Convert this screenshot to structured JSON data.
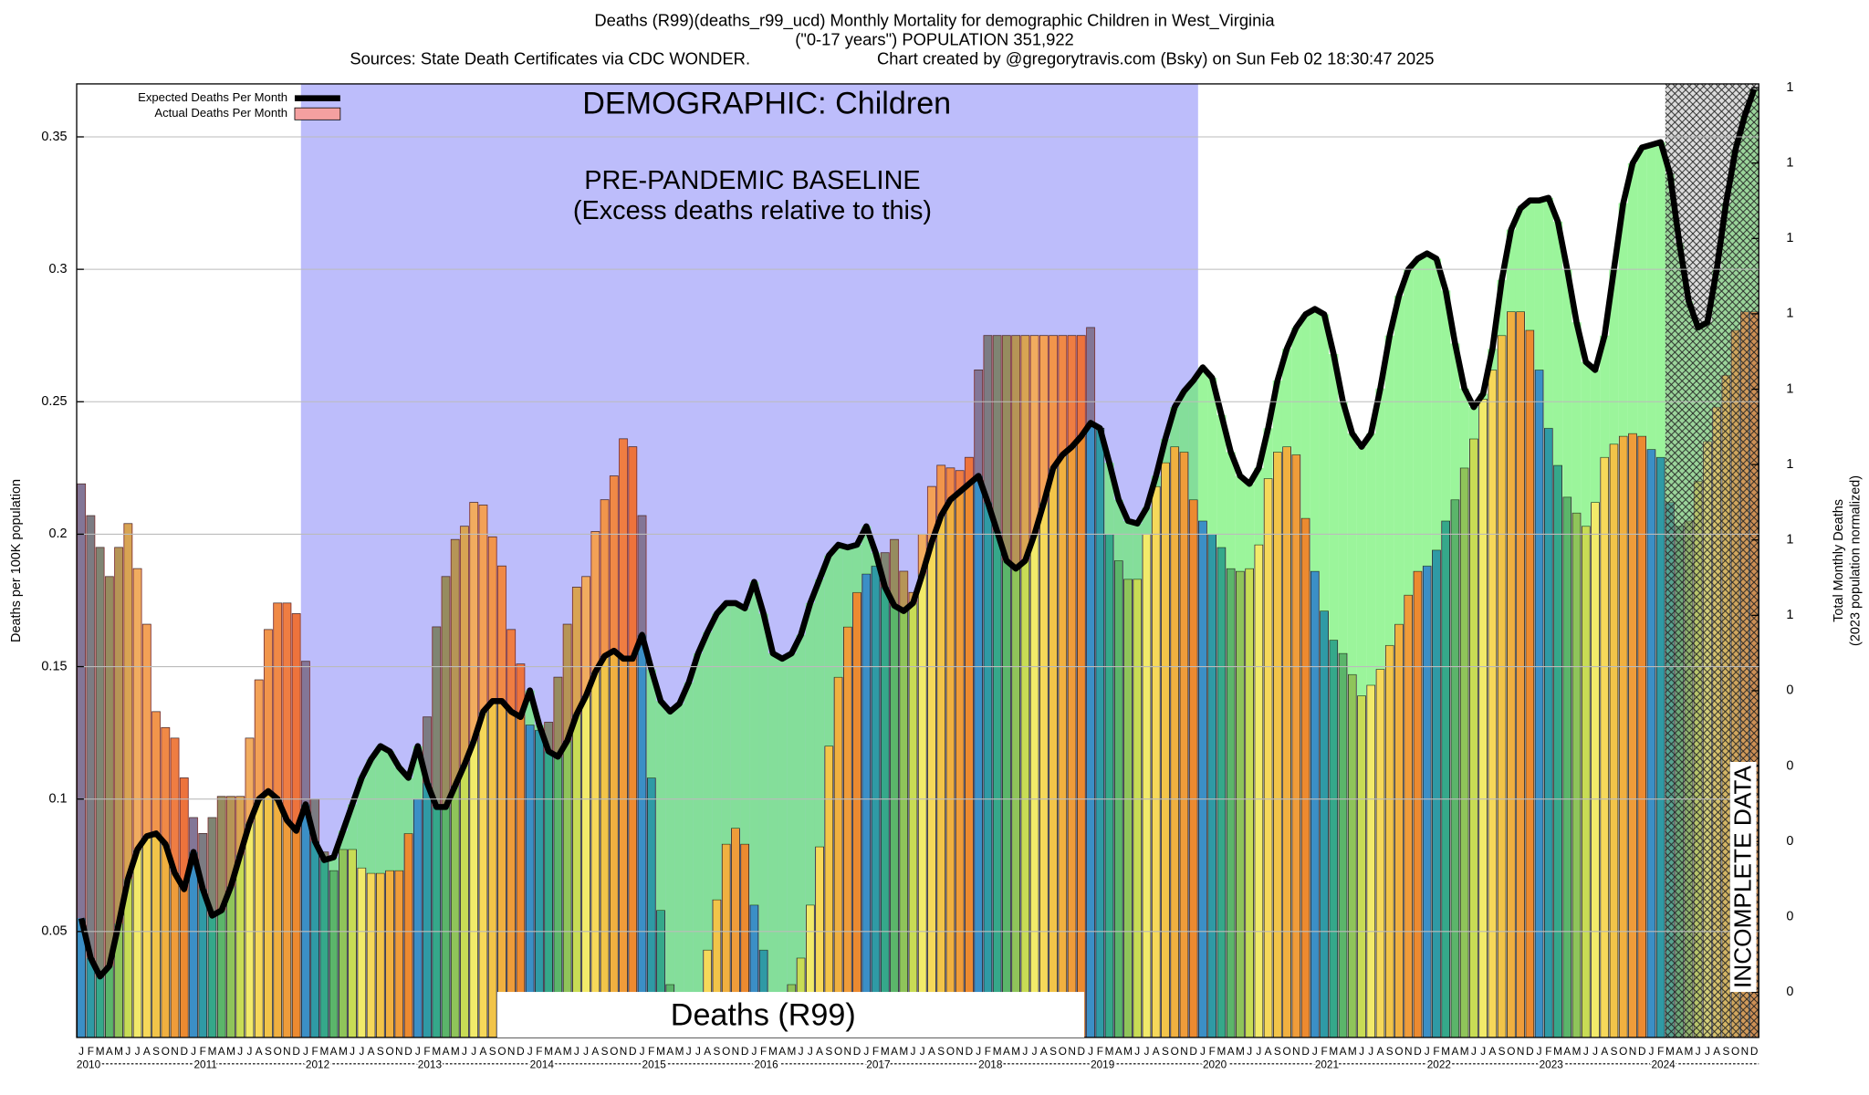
{
  "chart_data": {
    "type": "bar",
    "title": "Deaths (R99)(deaths_r99_ucd) Monthly Mortality for demographic Children in West_Virginia",
    "subtitle": "(\"0-17 years\") POPULATION 351,922",
    "source": "Sources: State Death Certificates via CDC WONDER.",
    "credit": "Chart created by @gregorytravis.com (Bsky) on Sun Feb 02 18:30:47 2025",
    "ylabel": "Deaths per 100K population",
    "y2label": [
      "Total Monthly Deaths",
      "(2023 population normalized)"
    ],
    "annotations": {
      "demographic": "DEMOGRAPHIC: Children",
      "baseline": "PRE-PANDEMIC BASELINE",
      "baseline_note": "(Excess deaths relative to this)",
      "cause": "Deaths (R99)",
      "incomplete": "INCOMPLETE DATA"
    },
    "month_labels": [
      "J",
      "F",
      "M",
      "A",
      "M",
      "J",
      "J",
      "A",
      "S",
      "O",
      "N",
      "D"
    ],
    "years": [
      2010,
      2011,
      2012,
      2013,
      2014,
      2015,
      2016,
      2017,
      2018,
      2019,
      2020,
      2021,
      2022,
      2023,
      2024
    ],
    "month_colors": [
      "#3b8fc6",
      "#2f9aa5",
      "#35a88a",
      "#5bb56a",
      "#8fc45a",
      "#c8dc55",
      "#f2ea6a",
      "#f6d85a",
      "#f2c449",
      "#f0b040",
      "#ef9c3a",
      "#ec8a30"
    ],
    "series": [
      {
        "name": "Expected Deaths Per Month",
        "color": "#000000",
        "values": [
          0.055,
          0.04,
          0.033,
          0.037,
          0.053,
          0.07,
          0.081,
          0.086,
          0.087,
          0.083,
          0.072,
          0.066,
          0.08,
          0.066,
          0.056,
          0.058,
          0.067,
          0.079,
          0.091,
          0.1,
          0.103,
          0.1,
          0.092,
          0.088,
          0.098,
          0.084,
          0.077,
          0.078,
          0.088,
          0.098,
          0.108,
          0.115,
          0.12,
          0.118,
          0.112,
          0.108,
          0.12,
          0.106,
          0.097,
          0.097,
          0.105,
          0.113,
          0.122,
          0.133,
          0.137,
          0.137,
          0.133,
          0.131,
          0.141,
          0.128,
          0.118,
          0.116,
          0.122,
          0.132,
          0.139,
          0.148,
          0.154,
          0.156,
          0.153,
          0.153,
          0.162,
          0.149,
          0.137,
          0.133,
          0.136,
          0.144,
          0.155,
          0.163,
          0.17,
          0.174,
          0.174,
          0.172,
          0.182,
          0.17,
          0.155,
          0.153,
          0.155,
          0.162,
          0.174,
          0.183,
          0.192,
          0.196,
          0.195,
          0.196,
          0.203,
          0.193,
          0.18,
          0.173,
          0.171,
          0.174,
          0.185,
          0.197,
          0.207,
          0.213,
          0.216,
          0.219,
          0.222,
          0.212,
          0.201,
          0.19,
          0.187,
          0.19,
          0.2,
          0.212,
          0.225,
          0.23,
          0.233,
          0.237,
          0.242,
          0.24,
          0.227,
          0.213,
          0.205,
          0.204,
          0.21,
          0.222,
          0.236,
          0.248,
          0.254,
          0.258,
          0.263,
          0.259,
          0.245,
          0.231,
          0.222,
          0.219,
          0.225,
          0.24,
          0.258,
          0.27,
          0.278,
          0.283,
          0.285,
          0.283,
          0.268,
          0.25,
          0.238,
          0.233,
          0.238,
          0.255,
          0.275,
          0.29,
          0.3,
          0.304,
          0.306,
          0.304,
          0.292,
          0.272,
          0.255,
          0.248,
          0.253,
          0.27,
          0.296,
          0.315,
          0.323,
          0.326,
          0.326,
          0.327,
          0.318,
          0.3,
          0.28,
          0.265,
          0.262,
          0.275,
          0.3,
          0.325,
          0.34,
          0.346,
          0.347,
          0.348,
          0.336,
          0.31,
          0.288,
          0.278,
          0.28,
          0.3,
          0.325,
          0.345,
          0.358,
          0.368
        ]
      },
      {
        "name": "Actual Deaths Per Month",
        "color": "#f4a0a0",
        "values": [
          0.219,
          0.207,
          0.195,
          0.184,
          0.195,
          0.204,
          0.187,
          0.166,
          0.133,
          0.127,
          0.123,
          0.108,
          0.093,
          0.087,
          0.093,
          0.101,
          0.101,
          0.101,
          0.123,
          0.145,
          0.164,
          0.174,
          0.174,
          0.17,
          0.152,
          0.1,
          0.08,
          0.073,
          0.081,
          0.081,
          0.074,
          0.072,
          0.072,
          0.073,
          0.073,
          0.087,
          0.1,
          0.131,
          0.165,
          0.184,
          0.198,
          0.203,
          0.212,
          0.211,
          0.199,
          0.188,
          0.164,
          0.151,
          0.128,
          0.126,
          0.129,
          0.146,
          0.166,
          0.18,
          0.184,
          0.201,
          0.213,
          0.222,
          0.236,
          0.233,
          0.207,
          0.108,
          0.058,
          0.03,
          0.015,
          0.005,
          0.005,
          0.043,
          0.062,
          0.083,
          0.089,
          0.083,
          0.06,
          0.043,
          0.005,
          0.005,
          0.03,
          0.04,
          0.06,
          0.082,
          0.12,
          0.146,
          0.165,
          0.178,
          0.185,
          0.188,
          0.193,
          0.198,
          0.186,
          0.178,
          0.2,
          0.218,
          0.226,
          0.225,
          0.224,
          0.229,
          0.262,
          0.275,
          0.275,
          0.275,
          0.275,
          0.275,
          0.275,
          0.275,
          0.275,
          0.275,
          0.275,
          0.275,
          0.278,
          0.24,
          0.2,
          0.19,
          0.183,
          0.183,
          0.2,
          0.218,
          0.227,
          0.233,
          0.231,
          0.213,
          0.205,
          0.2,
          0.195,
          0.187,
          0.186,
          0.187,
          0.196,
          0.221,
          0.231,
          0.233,
          0.23,
          0.206,
          0.186,
          0.171,
          0.16,
          0.155,
          0.147,
          0.139,
          0.143,
          0.149,
          0.158,
          0.166,
          0.177,
          0.186,
          0.188,
          0.194,
          0.205,
          0.213,
          0.225,
          0.236,
          0.251,
          0.262,
          0.275,
          0.284,
          0.284,
          0.277,
          0.262,
          0.24,
          0.226,
          0.214,
          0.208,
          0.203,
          0.212,
          0.229,
          0.234,
          0.237,
          0.238,
          0.237,
          0.232,
          0.229,
          0.212,
          0.203,
          0.205,
          0.22,
          0.235,
          0.248,
          0.26,
          0.277,
          0.284,
          0.284
        ]
      }
    ],
    "ylim": [
      0.01,
      0.37
    ],
    "yticks": [
      0.05,
      0.1,
      0.15,
      0.2,
      0.25,
      0.3,
      0.35
    ],
    "y2lim": [
      0.04,
      1.305
    ],
    "y2ticks": [
      {
        "value": 0.1,
        "label": "0"
      },
      {
        "value": 0.2,
        "label": "0"
      },
      {
        "value": 0.3,
        "label": "0"
      },
      {
        "value": 0.4,
        "label": "0"
      },
      {
        "value": 0.5,
        "label": "0"
      },
      {
        "value": 0.6,
        "label": "1"
      },
      {
        "value": 0.7,
        "label": "1"
      },
      {
        "value": 0.8,
        "label": "1"
      },
      {
        "value": 0.9,
        "label": "1"
      },
      {
        "value": 1.0,
        "label": "1"
      },
      {
        "value": 1.1,
        "label": "1"
      },
      {
        "value": 1.2,
        "label": "1"
      },
      {
        "value": 1.3,
        "label": "1"
      }
    ],
    "grid": true,
    "legend": "top-left"
  }
}
